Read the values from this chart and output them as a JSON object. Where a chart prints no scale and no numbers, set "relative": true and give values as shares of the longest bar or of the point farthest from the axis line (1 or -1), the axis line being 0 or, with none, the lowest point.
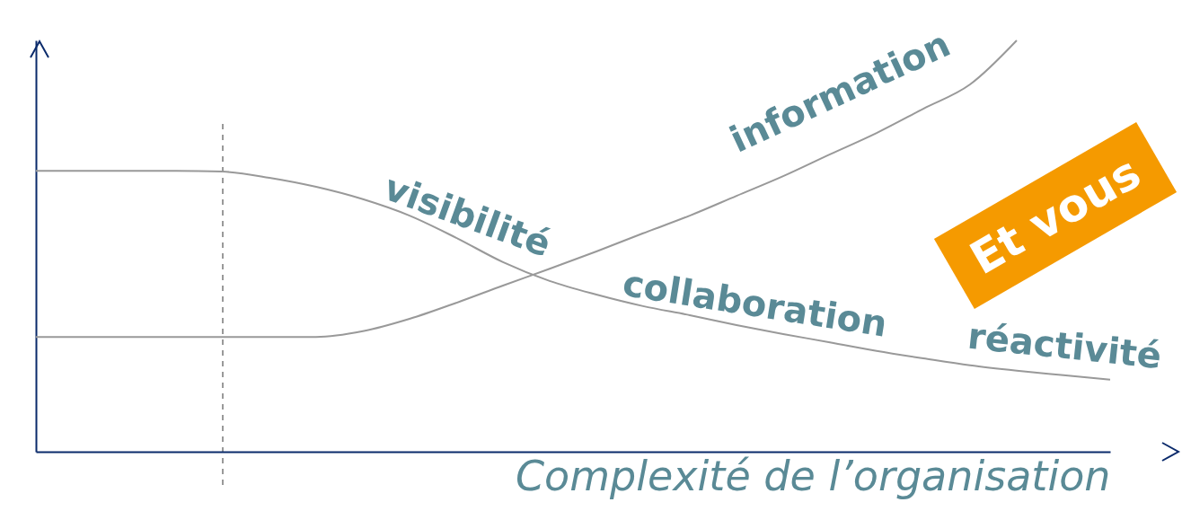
{
  "chart_data": {
    "type": "line",
    "relative": true,
    "xlabel": "Complexité  de l’organisation",
    "categories": [
      null,
      null,
      null,
      null,
      null,
      null,
      null,
      null,
      null,
      null,
      null,
      null,
      null,
      null,
      null,
      null,
      null,
      null,
      null,
      null,
      null,
      null,
      null,
      null
    ],
    "series": [
      {
        "color": "#999999",
        "values": [
          0.683,
          0.683,
          0.683,
          0.683,
          0.681,
          0.666,
          0.644,
          0.614,
          0.574,
          0.52,
          0.461,
          0.415,
          0.382,
          0.354,
          0.332,
          0.308,
          0.286,
          0.266,
          0.245,
          0.227,
          0.21,
          0.197,
          0.186,
          0.175
        ]
      },
      {
        "color": "#999999",
        "values": [
          0.279,
          0.279,
          0.279,
          0.279,
          0.279,
          0.279,
          0.279,
          0.293,
          0.323,
          0.362,
          0.404,
          0.445,
          0.487,
          0.531,
          0.574,
          0.622,
          0.67,
          0.723,
          0.775,
          0.834,
          0.893,
          1,
          null,
          null
        ]
      }
    ],
    "annotations": [
      "information",
      "visibilité",
      "collaboration",
      "réactivité",
      "Et vous"
    ],
    "grid": false,
    "legend": false,
    "marker": "none",
    "line_style": "solid"
  }
}
